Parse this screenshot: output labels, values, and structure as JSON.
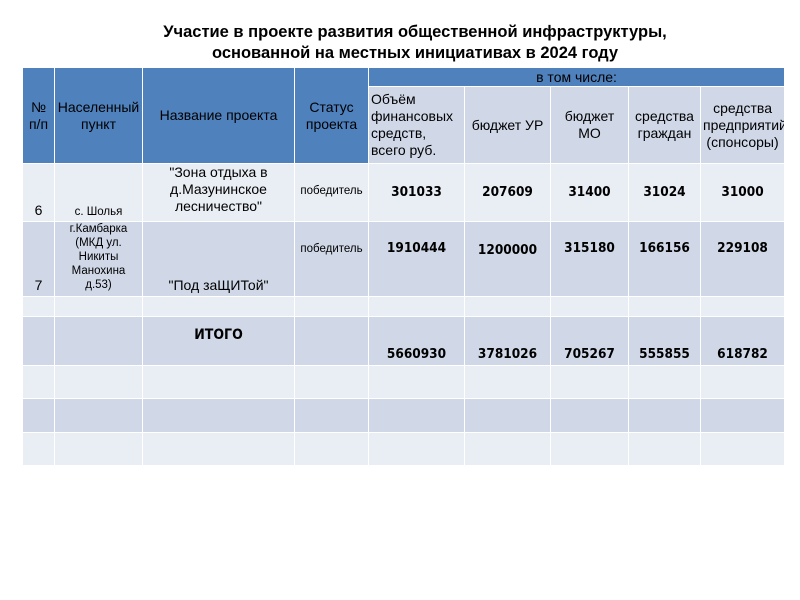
{
  "title": [
    "Участие в проекте развития общественной инфраструктуры,",
    "основанной на местных инициативах в 2024 году"
  ],
  "headers": {
    "num": "№ п/п",
    "settlement": "Населенный пункт",
    "project": "Название проекта",
    "status": "Статус проекта",
    "including": "в том числе:",
    "total": "Объём финансовых средств, всего руб.",
    "budget_ur": "бюджет УР",
    "budget_mo": "бюджет МО",
    "citizens": "средства граждан",
    "sponsors": "средства предприятий (спонсоры)"
  },
  "rows": [
    {
      "num": "6",
      "settlement": "с. Шолья",
      "project": "\"Зона отдыха в д.Мазунинское лесничество\"",
      "status": "победитель",
      "total": "301033",
      "budget_ur": "207609",
      "budget_mo": "31400",
      "citizens": "31024",
      "sponsors": "31000"
    },
    {
      "num": "7",
      "settlement": "г.Камбарка (МКД ул. Никиты Манохина д.53)",
      "project": "\"Под заЩИТой\"",
      "status": "победитель",
      "total": "1910444",
      "budget_ur": "1200000",
      "budget_mo": "315180",
      "citizens": "166156",
      "sponsors": "229108"
    }
  ],
  "totals": {
    "label": "ИТОГО",
    "total": "5660930",
    "budget_ur": "3781026",
    "budget_mo": "705267",
    "citizens": "555855",
    "sponsors": "618782"
  },
  "colors": {
    "header": "#4f81bd",
    "row_dark": "#d0d8e8",
    "row_light": "#e9edf4"
  }
}
